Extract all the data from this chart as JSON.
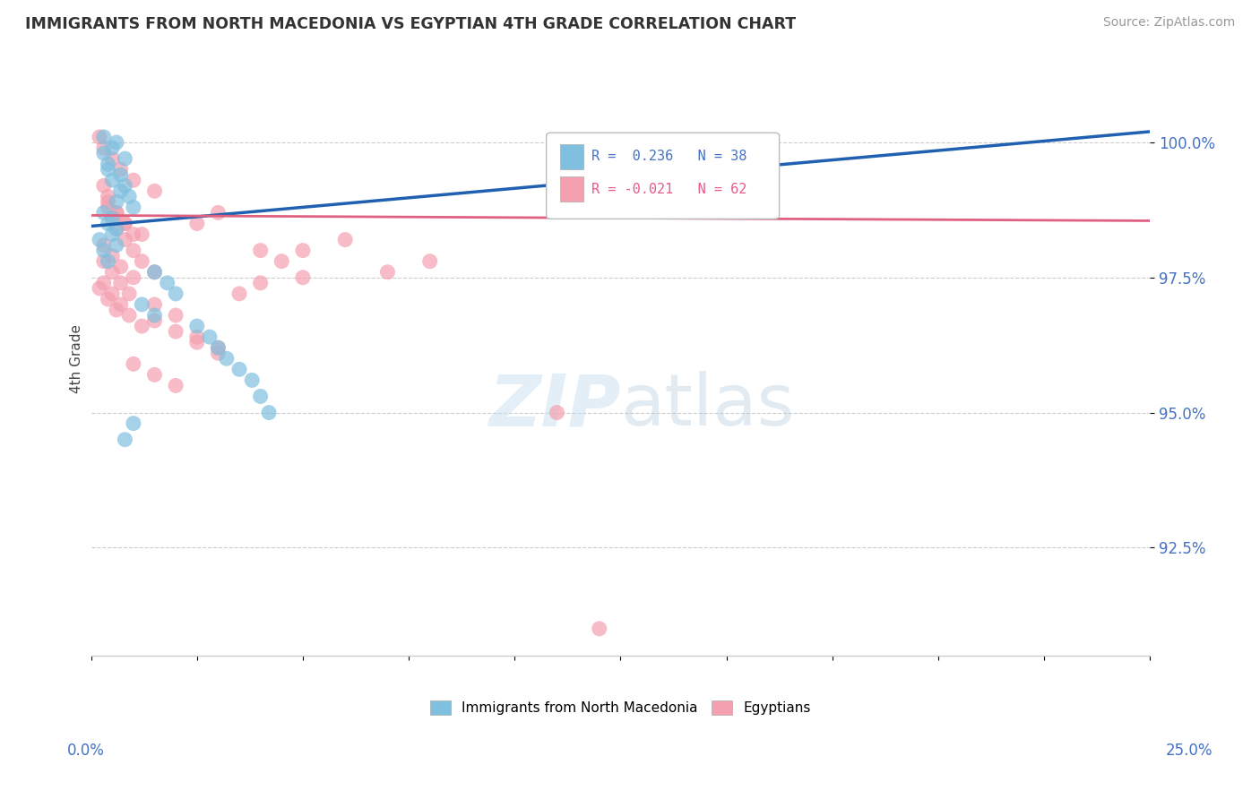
{
  "title": "IMMIGRANTS FROM NORTH MACEDONIA VS EGYPTIAN 4TH GRADE CORRELATION CHART",
  "source": "Source: ZipAtlas.com",
  "ylabel": "4th Grade",
  "legend_blue_label": "Immigrants from North Macedonia",
  "legend_pink_label": "Egyptians",
  "R_blue": 0.236,
  "N_blue": 38,
  "R_pink": -0.021,
  "N_pink": 62,
  "color_blue": "#7fbfdf",
  "color_pink": "#f4a0b0",
  "trendline_blue": "#2060b0",
  "trendline_pink": "#e06080",
  "xlim": [
    0.0,
    25.0
  ],
  "ylim": [
    90.5,
    101.5
  ],
  "yticks": [
    92.5,
    95.0,
    97.5,
    100.0
  ],
  "blue_points": [
    [
      0.3,
      100.1
    ],
    [
      0.5,
      99.9
    ],
    [
      0.6,
      100.0
    ],
    [
      0.8,
      99.7
    ],
    [
      0.4,
      99.5
    ],
    [
      0.5,
      99.3
    ],
    [
      0.7,
      99.1
    ],
    [
      0.6,
      98.9
    ],
    [
      0.3,
      98.7
    ],
    [
      0.4,
      98.5
    ],
    [
      0.5,
      98.3
    ],
    [
      0.6,
      98.1
    ],
    [
      0.3,
      99.8
    ],
    [
      0.4,
      99.6
    ],
    [
      0.7,
      99.4
    ],
    [
      0.8,
      99.2
    ],
    [
      0.9,
      99.0
    ],
    [
      1.0,
      98.8
    ],
    [
      0.5,
      98.6
    ],
    [
      0.6,
      98.4
    ],
    [
      0.2,
      98.2
    ],
    [
      0.3,
      98.0
    ],
    [
      0.4,
      97.8
    ],
    [
      1.5,
      97.6
    ],
    [
      1.8,
      97.4
    ],
    [
      2.0,
      97.2
    ],
    [
      1.2,
      97.0
    ],
    [
      1.5,
      96.8
    ],
    [
      2.5,
      96.6
    ],
    [
      2.8,
      96.4
    ],
    [
      3.0,
      96.2
    ],
    [
      3.2,
      96.0
    ],
    [
      3.5,
      95.8
    ],
    [
      3.8,
      95.6
    ],
    [
      4.0,
      95.3
    ],
    [
      4.2,
      95.0
    ],
    [
      1.0,
      94.8
    ],
    [
      0.8,
      94.5
    ]
  ],
  "pink_points": [
    [
      0.2,
      100.1
    ],
    [
      0.3,
      99.9
    ],
    [
      0.5,
      99.7
    ],
    [
      0.7,
      99.5
    ],
    [
      1.0,
      99.3
    ],
    [
      1.5,
      99.1
    ],
    [
      0.4,
      98.9
    ],
    [
      0.6,
      98.7
    ],
    [
      0.8,
      98.5
    ],
    [
      1.2,
      98.3
    ],
    [
      0.3,
      98.1
    ],
    [
      0.5,
      97.9
    ],
    [
      0.7,
      97.7
    ],
    [
      1.0,
      97.5
    ],
    [
      0.2,
      97.3
    ],
    [
      0.4,
      97.1
    ],
    [
      0.6,
      96.9
    ],
    [
      1.5,
      96.7
    ],
    [
      2.0,
      96.5
    ],
    [
      2.5,
      96.3
    ],
    [
      3.0,
      96.1
    ],
    [
      1.0,
      95.9
    ],
    [
      1.5,
      95.7
    ],
    [
      2.0,
      95.5
    ],
    [
      0.3,
      99.2
    ],
    [
      0.4,
      98.8
    ],
    [
      0.5,
      98.6
    ],
    [
      0.6,
      98.4
    ],
    [
      0.8,
      98.2
    ],
    [
      1.0,
      98.0
    ],
    [
      1.2,
      97.8
    ],
    [
      1.5,
      97.6
    ],
    [
      0.3,
      97.4
    ],
    [
      0.5,
      97.2
    ],
    [
      0.7,
      97.0
    ],
    [
      0.9,
      96.8
    ],
    [
      1.2,
      96.6
    ],
    [
      2.5,
      96.4
    ],
    [
      3.0,
      96.2
    ],
    [
      0.4,
      99.0
    ],
    [
      0.6,
      98.7
    ],
    [
      0.8,
      98.5
    ],
    [
      1.0,
      98.3
    ],
    [
      0.3,
      97.8
    ],
    [
      0.5,
      97.6
    ],
    [
      0.7,
      97.4
    ],
    [
      0.9,
      97.2
    ],
    [
      1.5,
      97.0
    ],
    [
      2.0,
      96.8
    ],
    [
      4.0,
      98.0
    ],
    [
      5.0,
      97.5
    ],
    [
      3.5,
      97.2
    ],
    [
      2.5,
      98.5
    ],
    [
      4.5,
      97.8
    ],
    [
      6.0,
      98.2
    ],
    [
      3.0,
      98.7
    ],
    [
      4.0,
      97.4
    ],
    [
      5.0,
      98.0
    ],
    [
      7.0,
      97.6
    ],
    [
      8.0,
      97.8
    ],
    [
      11.0,
      95.0
    ],
    [
      12.0,
      91.0
    ]
  ]
}
